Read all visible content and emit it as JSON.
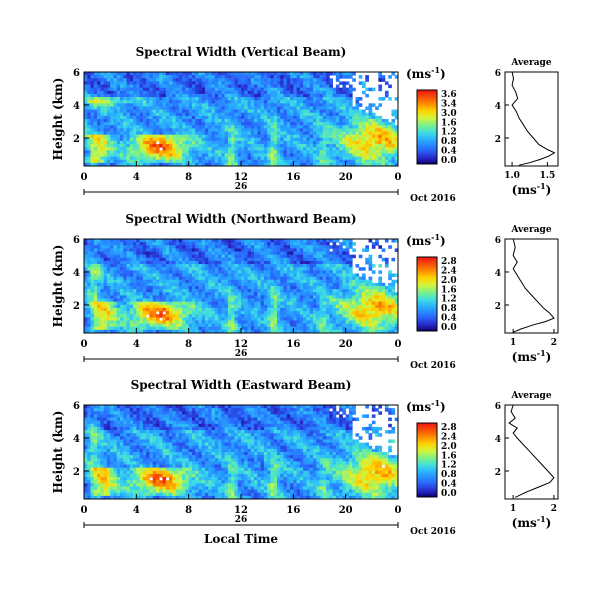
{
  "chart_data": [
    {
      "type": "heatmap",
      "title": "Spectral Width (Vertical Beam)",
      "ylabel": "Height (km)",
      "yticks": [
        "6",
        "4",
        "2"
      ],
      "ylim": [
        0.3,
        6.0
      ],
      "xticks": [
        "0",
        "4",
        "8",
        "12",
        "16",
        "20",
        "0"
      ],
      "xlim": [
        0,
        24
      ],
      "date_label": "26",
      "colorbar": {
        "unit_prefix": "(ms",
        "unit_exp": "-1",
        "unit_suffix": ")",
        "ticks": [
          "3.6",
          "3.4",
          "3.0",
          "1.6",
          "1.2",
          "0.8",
          "0.4",
          "0.0"
        ],
        "range": [
          0.0,
          3.6
        ]
      },
      "month_label": "Oct 2016",
      "average": {
        "title": "Average",
        "xticks": [
          "1.0",
          "1.5"
        ],
        "xlim": [
          0.9,
          1.65
        ],
        "yticks": [
          "6",
          "4",
          "2"
        ],
        "xlabel_prefix": "(ms",
        "xlabel_exp": "-1",
        "xlabel_suffix": ")",
        "profile": [
          [
            1.0,
            6.0
          ],
          [
            1.02,
            5.6
          ],
          [
            1.0,
            5.2
          ],
          [
            1.05,
            4.8
          ],
          [
            1.08,
            4.4
          ],
          [
            1.0,
            4.0
          ],
          [
            1.06,
            3.6
          ],
          [
            1.1,
            3.2
          ],
          [
            1.16,
            2.8
          ],
          [
            1.22,
            2.4
          ],
          [
            1.3,
            2.0
          ],
          [
            1.38,
            1.6
          ],
          [
            1.5,
            1.3
          ],
          [
            1.6,
            1.1
          ],
          [
            1.52,
            0.9
          ],
          [
            1.4,
            0.7
          ],
          [
            1.25,
            0.5
          ],
          [
            1.1,
            0.35
          ]
        ]
      }
    },
    {
      "type": "heatmap",
      "title": "Spectral Width (Northward Beam)",
      "ylabel": "Height (km)",
      "yticks": [
        "6",
        "4",
        "2"
      ],
      "ylim": [
        0.3,
        6.0
      ],
      "xticks": [
        "0",
        "4",
        "8",
        "12",
        "16",
        "20",
        "0"
      ],
      "xlim": [
        0,
        24
      ],
      "date_label": "26",
      "colorbar": {
        "unit_prefix": "(ms",
        "unit_exp": "-1",
        "unit_suffix": ")",
        "ticks": [
          "2.8",
          "2.4",
          "2.0",
          "1.6",
          "1.2",
          "0.8",
          "0.4",
          "0.0"
        ],
        "range": [
          0.0,
          2.8
        ]
      },
      "month_label": "Oct 2016",
      "average": {
        "title": "Average",
        "xticks": [
          "1",
          "2"
        ],
        "xlim": [
          0.8,
          2.1
        ],
        "yticks": [
          "6",
          "4",
          "2"
        ],
        "xlabel_prefix": "(ms",
        "xlabel_exp": "-1",
        "xlabel_suffix": ")",
        "profile": [
          [
            1.0,
            6.0
          ],
          [
            1.05,
            5.5
          ],
          [
            1.0,
            5.0
          ],
          [
            1.1,
            4.6
          ],
          [
            1.0,
            4.2
          ],
          [
            1.1,
            3.8
          ],
          [
            1.2,
            3.4
          ],
          [
            1.3,
            3.0
          ],
          [
            1.45,
            2.6
          ],
          [
            1.6,
            2.2
          ],
          [
            1.75,
            1.8
          ],
          [
            1.9,
            1.5
          ],
          [
            2.0,
            1.2
          ],
          [
            1.8,
            1.0
          ],
          [
            1.5,
            0.8
          ],
          [
            1.2,
            0.55
          ],
          [
            1.0,
            0.35
          ]
        ]
      }
    },
    {
      "type": "heatmap",
      "title": "Spectral Width (Eastward Beam)",
      "ylabel": "Height (km)",
      "yticks": [
        "6",
        "4",
        "2"
      ],
      "ylim": [
        0.3,
        6.0
      ],
      "xticks": [
        "0",
        "4",
        "8",
        "12",
        "16",
        "20",
        "0"
      ],
      "xlim": [
        0,
        24
      ],
      "date_label": "26",
      "xlabel": "Local Time",
      "colorbar": {
        "unit_prefix": "(ms",
        "unit_exp": "-1",
        "unit_suffix": ")",
        "ticks": [
          "2.8",
          "2.4",
          "2.0",
          "1.6",
          "1.2",
          "0.8",
          "0.4",
          "0.0"
        ],
        "range": [
          0.0,
          2.8
        ]
      },
      "month_label": "Oct 2016",
      "average": {
        "title": "Average",
        "xticks": [
          "1",
          "2"
        ],
        "xlim": [
          0.8,
          2.1
        ],
        "yticks": [
          "6",
          "4",
          "2"
        ],
        "xlabel_prefix": "(ms",
        "xlabel_exp": "-1",
        "xlabel_suffix": ")",
        "profile": [
          [
            1.0,
            6.0
          ],
          [
            0.95,
            5.6
          ],
          [
            1.05,
            5.2
          ],
          [
            0.9,
            4.9
          ],
          [
            1.1,
            4.6
          ],
          [
            1.0,
            4.3
          ],
          [
            1.1,
            4.0
          ],
          [
            1.25,
            3.6
          ],
          [
            1.4,
            3.2
          ],
          [
            1.55,
            2.8
          ],
          [
            1.7,
            2.4
          ],
          [
            1.85,
            2.0
          ],
          [
            2.0,
            1.6
          ],
          [
            1.9,
            1.3
          ],
          [
            1.6,
            1.0
          ],
          [
            1.3,
            0.7
          ],
          [
            1.05,
            0.4
          ]
        ]
      }
    }
  ]
}
